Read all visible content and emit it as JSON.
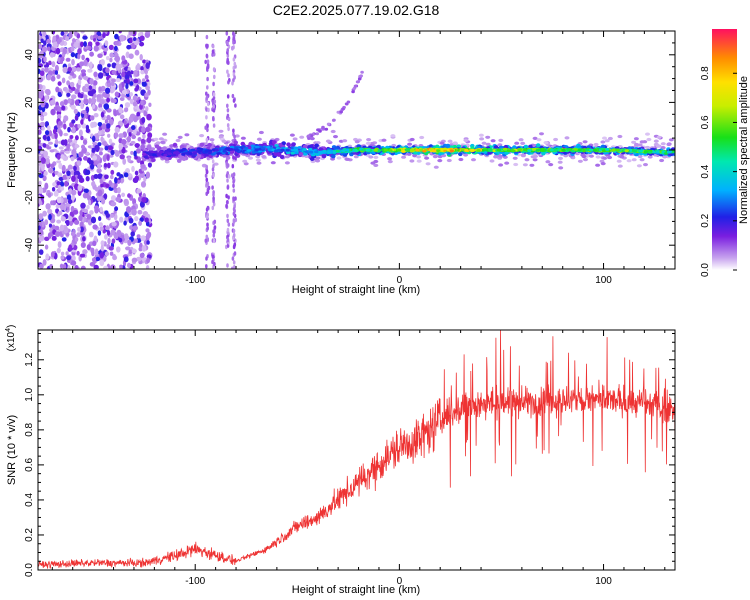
{
  "title": "C2E2.2025.077.19.02.G18",
  "chart_data": [
    {
      "type": "heatmap",
      "xlabel": "Height of straight line (km)",
      "ylabel": "Frequency (Hz)",
      "xlim": [
        -177,
        135
      ],
      "ylim": [
        -50,
        50
      ],
      "xticks": [
        -100,
        0,
        100
      ],
      "xtick_labels": [
        "-100",
        "0",
        "100"
      ],
      "yticks": [
        -40,
        -20,
        0,
        20,
        40
      ],
      "ytick_labels": [
        "-40",
        "-20",
        "0",
        "20",
        "40"
      ],
      "colorbar": {
        "label": "Normalized spectral amplitude",
        "range": [
          0,
          0.98
        ],
        "ticks": [
          0.0,
          0.2,
          0.4,
          0.6,
          0.8
        ],
        "tick_labels": [
          "0.0",
          "0.2",
          "0.4",
          "0.6",
          "0.8"
        ],
        "colormap": "rainbow (violet to red)"
      },
      "ridge": {
        "description": "main signal band near 0 Hz",
        "x": [
          -125,
          -100,
          -80,
          -60,
          -40,
          -20,
          0,
          20,
          50,
          80,
          100,
          135
        ],
        "frequency": [
          -2,
          -1,
          0,
          0.5,
          -1,
          0,
          0,
          0,
          0,
          0,
          0,
          -1
        ],
        "amplitude": [
          0.2,
          0.25,
          0.3,
          0.35,
          0.4,
          0.55,
          0.7,
          0.9,
          0.7,
          0.6,
          0.65,
          0.55
        ]
      },
      "noise_region_x": [
        -177,
        -122
      ],
      "drift_feature": {
        "x": [
          -45,
          -35,
          -25,
          -18
        ],
        "frequency": [
          5,
          10,
          20,
          33
        ]
      },
      "grid": false
    },
    {
      "type": "line",
      "xlabel": "Height of straight line (km)",
      "ylabel": "SNR (10 * v/v)",
      "y_multiplier_label": "(x10",
      "y_multiplier_exp": "4",
      "y_multiplier_close": ")",
      "xlim": [
        -177,
        135
      ],
      "ylim": [
        0,
        1.37
      ],
      "xticks": [
        -100,
        0,
        100
      ],
      "xtick_labels": [
        "-100",
        "0",
        "100"
      ],
      "yticks": [
        0.0,
        0.2,
        0.4,
        0.6,
        0.8,
        1.0,
        1.2
      ],
      "ytick_labels": [
        "0.0",
        "0.2",
        "0.4",
        "0.6",
        "0.8",
        "1.0",
        "1.2"
      ],
      "series": [
        {
          "color": "#ee3333",
          "x": [
            -177,
            -150,
            -125,
            -110,
            -100,
            -80,
            -65,
            -50,
            -40,
            -30,
            -20,
            -10,
            0,
            10,
            20,
            25,
            30,
            40,
            60,
            80,
            100,
            120,
            135
          ],
          "y": [
            0.03,
            0.04,
            0.04,
            0.08,
            0.12,
            0.05,
            0.12,
            0.25,
            0.3,
            0.4,
            0.5,
            0.6,
            0.7,
            0.75,
            0.85,
            0.9,
            0.92,
            0.95,
            0.96,
            0.97,
            0.97,
            0.95,
            0.92
          ]
        }
      ],
      "grid": false
    }
  ]
}
